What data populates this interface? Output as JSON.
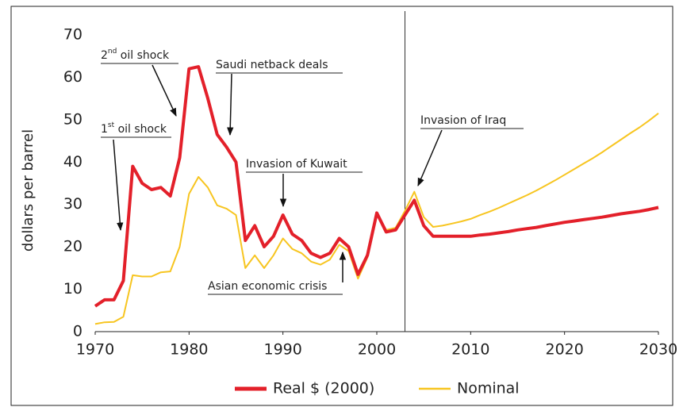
{
  "chart_data": {
    "type": "line",
    "y_label": "dollars per barrel",
    "x": [
      1970,
      1971,
      1972,
      1973,
      1974,
      1975,
      1976,
      1977,
      1978,
      1979,
      1980,
      1981,
      1982,
      1983,
      1984,
      1985,
      1986,
      1987,
      1988,
      1989,
      1990,
      1991,
      1992,
      1993,
      1994,
      1995,
      1996,
      1997,
      1998,
      1999,
      2000,
      2001,
      2002,
      2003,
      2004,
      2005,
      2006,
      2007,
      2008,
      2009,
      2010,
      2011,
      2012,
      2013,
      2014,
      2015,
      2016,
      2017,
      2018,
      2019,
      2020,
      2021,
      2022,
      2023,
      2024,
      2025,
      2026,
      2027,
      2028,
      2029,
      2030
    ],
    "series": [
      {
        "name": "Real $ (2000)",
        "color": "#e3202a",
        "values": [
          6,
          7.5,
          7.5,
          12,
          39,
          35,
          33.5,
          34,
          32,
          41,
          62,
          62.5,
          55,
          46.5,
          43.5,
          40,
          21.5,
          25,
          20,
          22.5,
          27.5,
          23,
          21.5,
          18.5,
          17.5,
          18.5,
          22,
          20,
          13.5,
          18,
          28,
          23.5,
          24,
          27.5,
          31,
          25,
          22.5,
          22.5,
          22.5,
          22.5,
          22.5,
          22.8,
          23,
          23.3,
          23.6,
          24,
          24.3,
          24.6,
          25,
          25.4,
          25.8,
          26.1,
          26.4,
          26.7,
          27,
          27.4,
          27.8,
          28.1,
          28.4,
          28.8,
          29.3
        ]
      },
      {
        "name": "Nominal",
        "color": "#f7c520",
        "values": [
          1.8,
          2.2,
          2.3,
          3.5,
          13.3,
          13,
          13,
          14,
          14.2,
          20,
          32.5,
          36.5,
          34,
          29.8,
          29,
          27.5,
          15,
          18,
          15,
          18,
          22,
          19.5,
          18.5,
          16.5,
          15.8,
          17,
          20.5,
          19,
          12.5,
          17.5,
          28,
          24,
          24.5,
          28.5,
          33,
          27,
          24.7,
          25,
          25.5,
          26,
          26.6,
          27.5,
          28.3,
          29.2,
          30.2,
          31.2,
          32.2,
          33.3,
          34.5,
          35.7,
          37,
          38.3,
          39.6,
          40.9,
          42.3,
          43.8,
          45.3,
          46.8,
          48.2,
          49.8,
          51.5
        ]
      }
    ],
    "reference_line_x": 2003,
    "annotations": [
      "2nd oil shock",
      "1st oil shock",
      "Saudi netback deals",
      "Invasion of Kuwait",
      "Asian economic crisis",
      "Invasion of Iraq"
    ],
    "xlim": [
      1970,
      2030
    ],
    "xticks": [
      1970,
      1980,
      1990,
      2000,
      2010,
      2020,
      2030
    ],
    "ylim": [
      0,
      70
    ],
    "yticks": [
      0,
      10,
      20,
      30,
      40,
      50,
      60,
      70
    ],
    "grid": false,
    "legend": "bottom"
  }
}
